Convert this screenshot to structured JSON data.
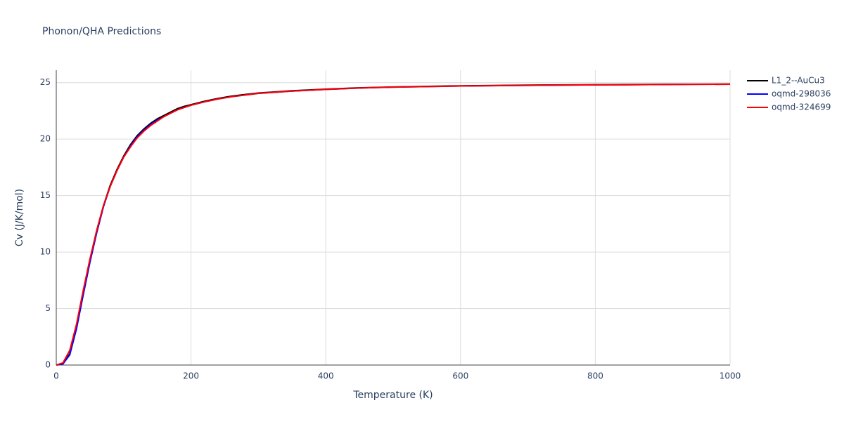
{
  "chart_data": {
    "type": "line",
    "title": "Phonon/QHA Predictions",
    "x_label": "Temperature (K)",
    "y_label": "Cv (J/K/mol)",
    "x": [
      0,
      10,
      20,
      30,
      40,
      50,
      60,
      70,
      80,
      90,
      100,
      110,
      120,
      130,
      140,
      150,
      160,
      170,
      180,
      190,
      200,
      220,
      240,
      260,
      280,
      300,
      350,
      400,
      450,
      500,
      600,
      700,
      800,
      900,
      1000
    ],
    "series": [
      {
        "name": "L1_2--AuCu3",
        "color": "#000000",
        "values": [
          0,
          0.1,
          1.0,
          3.4,
          6.4,
          9.3,
          11.9,
          14.1,
          15.9,
          17.3,
          18.5,
          19.5,
          20.3,
          20.9,
          21.4,
          21.8,
          22.1,
          22.4,
          22.7,
          22.9,
          23.05,
          23.35,
          23.6,
          23.8,
          23.95,
          24.08,
          24.28,
          24.42,
          24.54,
          24.62,
          24.72,
          24.78,
          24.82,
          24.85,
          24.87
        ]
      },
      {
        "name": "oqmd-298036",
        "color": "#0000ff",
        "values": [
          0,
          0.1,
          0.9,
          3.2,
          6.2,
          9.1,
          11.7,
          14.0,
          15.8,
          17.2,
          18.4,
          19.4,
          20.2,
          20.8,
          21.3,
          21.7,
          22.0,
          22.3,
          22.6,
          22.8,
          23.0,
          23.3,
          23.55,
          23.75,
          23.9,
          24.05,
          24.25,
          24.4,
          24.52,
          24.6,
          24.7,
          24.76,
          24.8,
          24.83,
          24.86
        ]
      },
      {
        "name": "oqmd-324699",
        "color": "#ff0000",
        "values": [
          0,
          0.2,
          1.3,
          3.6,
          6.6,
          9.4,
          11.9,
          14.1,
          15.8,
          17.2,
          18.4,
          19.3,
          20.1,
          20.7,
          21.2,
          21.6,
          22.0,
          22.3,
          22.6,
          22.8,
          23.0,
          23.3,
          23.55,
          23.75,
          23.9,
          24.05,
          24.25,
          24.4,
          24.52,
          24.6,
          24.7,
          24.76,
          24.8,
          24.83,
          24.86
        ]
      }
    ],
    "xlim": [
      0,
      1000
    ],
    "xticks": [
      0,
      200,
      400,
      600,
      800,
      1000
    ],
    "ylim": [
      0,
      26.1
    ],
    "yticks": [
      0,
      5,
      10,
      15,
      20,
      25
    ],
    "grid": true,
    "legend": "right"
  }
}
